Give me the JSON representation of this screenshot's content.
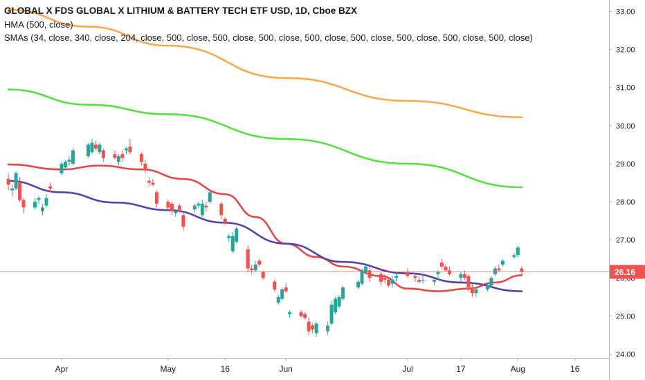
{
  "legend": {
    "title": "GLOBAL X FDS GLOBAL X LITHIUM & BATTERY TECH ETF USD, 1D, Cboe BZX",
    "hma": "HMA (500, close)",
    "smas": "SMAs (34, close, 340, close, 204, close, 500, close, 500, close, 500, close, 500, close, 500, close, 500, close, 500, close, 500, close)"
  },
  "colors": {
    "up": "#26a69a",
    "down": "#ef5350",
    "sma_red": "#e04848",
    "sma_blue": "#5b3ea8",
    "sma_green": "#55e040",
    "sma_orange": "#f9a84b",
    "price_line": "#ef5350",
    "axis": "#b2b5be"
  },
  "chart_data": {
    "type": "candlestick",
    "symbol": "GLOBAL X FDS GLOBAL X LITHIUM & BATTERY TECH ETF USD",
    "interval": "1D",
    "exchange": "Cboe BZX",
    "ylim": [
      23.9,
      33.3
    ],
    "y_ticks": [
      24.0,
      25.0,
      26.0,
      27.0,
      28.0,
      29.0,
      30.0,
      31.0,
      32.0,
      33.0
    ],
    "y_tick_labels": [
      "24.00",
      "25.00",
      "26.00",
      "27.00",
      "28.00",
      "29.00",
      "30.00",
      "31.00",
      "32.00",
      "33.00"
    ],
    "x_ticks": [
      {
        "label": "Apr",
        "date": "2023-04-03"
      },
      {
        "label": "May",
        "date": "2023-05-01"
      },
      {
        "label": "16",
        "date": "2023-05-16"
      },
      {
        "label": "Jun",
        "date": "2023-06-01"
      },
      {
        "label": "Jul",
        "date": "2023-07-03"
      },
      {
        "label": "17",
        "date": "2023-07-17"
      },
      {
        "label": "Aug",
        "date": "2023-08-01"
      },
      {
        "label": "16",
        "date": "2023-08-16"
      }
    ],
    "last_price": 26.16,
    "last_price_label": "26.16",
    "candles": [
      {
        "date": "2023-03-20",
        "o": 28.6,
        "h": 28.75,
        "l": 28.3,
        "c": 28.45
      },
      {
        "date": "2023-03-21",
        "o": 28.3,
        "h": 28.45,
        "l": 28.15,
        "c": 28.35
      },
      {
        "date": "2023-03-22",
        "o": 28.35,
        "h": 28.8,
        "l": 28.3,
        "c": 28.75
      },
      {
        "date": "2023-03-23",
        "o": 28.5,
        "h": 28.65,
        "l": 28.0,
        "c": 28.05
      },
      {
        "date": "2023-03-24",
        "o": 28.05,
        "h": 28.1,
        "l": 27.7,
        "c": 27.85
      },
      {
        "date": "2023-03-27",
        "o": 27.85,
        "h": 28.1,
        "l": 27.8,
        "c": 28.0
      },
      {
        "date": "2023-03-28",
        "o": 28.05,
        "h": 28.15,
        "l": 27.95,
        "c": 28.1
      },
      {
        "date": "2023-03-29",
        "o": 27.75,
        "h": 27.95,
        "l": 27.65,
        "c": 27.85
      },
      {
        "date": "2023-03-30",
        "o": 27.9,
        "h": 28.2,
        "l": 27.85,
        "c": 28.1
      },
      {
        "date": "2023-03-31",
        "o": 28.4,
        "h": 28.5,
        "l": 28.25,
        "c": 28.35
      },
      {
        "date": "2023-04-03",
        "o": 28.75,
        "h": 29.05,
        "l": 28.7,
        "c": 29.0
      },
      {
        "date": "2023-04-04",
        "o": 28.9,
        "h": 29.1,
        "l": 28.85,
        "c": 29.05
      },
      {
        "date": "2023-04-05",
        "o": 29.05,
        "h": 29.2,
        "l": 28.95,
        "c": 29.1
      },
      {
        "date": "2023-04-06",
        "o": 29.0,
        "h": 29.4,
        "l": 28.95,
        "c": 29.35
      },
      {
        "date": "2023-04-10",
        "o": 29.2,
        "h": 29.55,
        "l": 29.15,
        "c": 29.5
      },
      {
        "date": "2023-04-11",
        "o": 29.3,
        "h": 29.65,
        "l": 29.25,
        "c": 29.55
      },
      {
        "date": "2023-04-12",
        "o": 29.5,
        "h": 29.6,
        "l": 29.35,
        "c": 29.4
      },
      {
        "date": "2023-04-13",
        "o": 29.3,
        "h": 29.55,
        "l": 29.25,
        "c": 29.5
      },
      {
        "date": "2023-04-14",
        "o": 29.35,
        "h": 29.4,
        "l": 29.05,
        "c": 29.15
      },
      {
        "date": "2023-04-17",
        "o": 29.25,
        "h": 29.35,
        "l": 29.1,
        "c": 29.15
      },
      {
        "date": "2023-04-18",
        "o": 29.05,
        "h": 29.25,
        "l": 28.95,
        "c": 29.2
      },
      {
        "date": "2023-04-19",
        "o": 29.25,
        "h": 29.35,
        "l": 29.05,
        "c": 29.15
      },
      {
        "date": "2023-04-20",
        "o": 29.35,
        "h": 29.45,
        "l": 29.25,
        "c": 29.4
      },
      {
        "date": "2023-04-21",
        "o": 29.45,
        "h": 29.65,
        "l": 29.25,
        "c": 29.3
      },
      {
        "date": "2023-04-24",
        "o": 29.25,
        "h": 29.3,
        "l": 28.95,
        "c": 29.05
      },
      {
        "date": "2023-04-25",
        "o": 29.0,
        "h": 29.1,
        "l": 28.75,
        "c": 28.85
      },
      {
        "date": "2023-04-26",
        "o": 28.55,
        "h": 28.65,
        "l": 28.4,
        "c": 28.5
      },
      {
        "date": "2023-04-27",
        "o": 28.5,
        "h": 28.6,
        "l": 28.4,
        "c": 28.45
      },
      {
        "date": "2023-04-28",
        "o": 28.25,
        "h": 28.3,
        "l": 27.85,
        "c": 27.95
      },
      {
        "date": "2023-05-01",
        "o": 28.0,
        "h": 28.05,
        "l": 27.75,
        "c": 27.85
      },
      {
        "date": "2023-05-02",
        "o": 27.95,
        "h": 28.0,
        "l": 27.65,
        "c": 27.75
      },
      {
        "date": "2023-05-03",
        "o": 27.7,
        "h": 27.8,
        "l": 27.6,
        "c": 27.75
      },
      {
        "date": "2023-05-04",
        "o": 27.9,
        "h": 27.95,
        "l": 27.7,
        "c": 27.75
      },
      {
        "date": "2023-05-05",
        "o": 27.65,
        "h": 27.7,
        "l": 27.25,
        "c": 27.35
      },
      {
        "date": "2023-05-08",
        "o": 27.8,
        "h": 27.95,
        "l": 27.7,
        "c": 27.9
      },
      {
        "date": "2023-05-09",
        "o": 27.9,
        "h": 28.0,
        "l": 27.85,
        "c": 27.95
      },
      {
        "date": "2023-05-10",
        "o": 27.65,
        "h": 28.05,
        "l": 27.6,
        "c": 27.95
      },
      {
        "date": "2023-05-11",
        "o": 27.9,
        "h": 28.0,
        "l": 27.75,
        "c": 27.85
      },
      {
        "date": "2023-05-12",
        "o": 28.0,
        "h": 28.3,
        "l": 27.95,
        "c": 28.25
      },
      {
        "date": "2023-05-15",
        "o": 27.95,
        "h": 28.0,
        "l": 27.55,
        "c": 27.65
      },
      {
        "date": "2023-05-16",
        "o": 27.55,
        "h": 27.6,
        "l": 27.4,
        "c": 27.45
      },
      {
        "date": "2023-05-17",
        "o": 27.05,
        "h": 27.15,
        "l": 26.95,
        "c": 27.1
      },
      {
        "date": "2023-05-18",
        "o": 26.7,
        "h": 27.2,
        "l": 26.65,
        "c": 27.1
      },
      {
        "date": "2023-05-19",
        "o": 26.95,
        "h": 27.35,
        "l": 26.9,
        "c": 27.3
      },
      {
        "date": "2023-05-22",
        "o": 26.75,
        "h": 26.85,
        "l": 26.15,
        "c": 26.25
      },
      {
        "date": "2023-05-23",
        "o": 26.25,
        "h": 26.35,
        "l": 26.1,
        "c": 26.2
      },
      {
        "date": "2023-05-24",
        "o": 26.2,
        "h": 26.45,
        "l": 26.15,
        "c": 26.35
      },
      {
        "date": "2023-05-25",
        "o": 26.45,
        "h": 26.5,
        "l": 26.3,
        "c": 26.35
      },
      {
        "date": "2023-05-26",
        "o": 26.15,
        "h": 26.2,
        "l": 25.95,
        "c": 26.0
      },
      {
        "date": "2023-05-29",
        "o": 25.9,
        "h": 25.95,
        "l": 25.65,
        "c": 25.7
      },
      {
        "date": "2023-05-30",
        "o": 25.35,
        "h": 25.55,
        "l": 25.3,
        "c": 25.5
      },
      {
        "date": "2023-05-31",
        "o": 25.45,
        "h": 25.75,
        "l": 25.4,
        "c": 25.7
      },
      {
        "date": "2023-06-01",
        "o": 25.75,
        "h": 25.85,
        "l": 25.6,
        "c": 25.65
      },
      {
        "date": "2023-06-02",
        "o": 25.05,
        "h": 25.15,
        "l": 24.95,
        "c": 25.1
      },
      {
        "date": "2023-06-05",
        "o": 25.1,
        "h": 25.15,
        "l": 24.95,
        "c": 25.0
      },
      {
        "date": "2023-06-06",
        "o": 25.05,
        "h": 25.1,
        "l": 24.9,
        "c": 24.95
      },
      {
        "date": "2023-06-07",
        "o": 24.85,
        "h": 24.95,
        "l": 24.5,
        "c": 24.6
      },
      {
        "date": "2023-06-08",
        "o": 24.75,
        "h": 24.8,
        "l": 24.55,
        "c": 24.65
      },
      {
        "date": "2023-06-09",
        "o": 24.55,
        "h": 24.85,
        "l": 24.45,
        "c": 24.8
      },
      {
        "date": "2023-06-12",
        "o": 24.6,
        "h": 24.85,
        "l": 24.5,
        "c": 24.75
      },
      {
        "date": "2023-06-13",
        "o": 24.8,
        "h": 25.4,
        "l": 24.75,
        "c": 25.3
      },
      {
        "date": "2023-06-14",
        "o": 25.1,
        "h": 25.5,
        "l": 25.05,
        "c": 25.45
      },
      {
        "date": "2023-06-15",
        "o": 25.25,
        "h": 25.55,
        "l": 25.2,
        "c": 25.5
      },
      {
        "date": "2023-06-16",
        "o": 25.45,
        "h": 25.8,
        "l": 25.4,
        "c": 25.75
      },
      {
        "date": "2023-06-20",
        "o": 25.75,
        "h": 25.95,
        "l": 25.7,
        "c": 25.9
      },
      {
        "date": "2023-06-21",
        "o": 25.85,
        "h": 26.25,
        "l": 25.8,
        "c": 26.2
      },
      {
        "date": "2023-06-22",
        "o": 26.15,
        "h": 26.35,
        "l": 26.1,
        "c": 26.3
      },
      {
        "date": "2023-06-23",
        "o": 26.2,
        "h": 26.3,
        "l": 25.9,
        "c": 26.0
      },
      {
        "date": "2023-06-26",
        "o": 26.1,
        "h": 26.15,
        "l": 25.8,
        "c": 25.9
      },
      {
        "date": "2023-06-27",
        "o": 26.0,
        "h": 26.1,
        "l": 25.85,
        "c": 25.95
      },
      {
        "date": "2023-06-28",
        "o": 25.95,
        "h": 26.0,
        "l": 25.75,
        "c": 25.8
      },
      {
        "date": "2023-06-29",
        "o": 25.85,
        "h": 26.05,
        "l": 25.75,
        "c": 25.95
      },
      {
        "date": "2023-06-30",
        "o": 26.0,
        "h": 26.15,
        "l": 25.9,
        "c": 26.05
      },
      {
        "date": "2023-07-03",
        "o": 26.15,
        "h": 26.25,
        "l": 26.0,
        "c": 26.05
      },
      {
        "date": "2023-07-05",
        "o": 26.05,
        "h": 26.1,
        "l": 25.9,
        "c": 26.0
      },
      {
        "date": "2023-07-06",
        "o": 25.95,
        "h": 26.05,
        "l": 25.85,
        "c": 25.9
      },
      {
        "date": "2023-07-07",
        "o": 25.95,
        "h": 26.1,
        "l": 25.85,
        "c": 25.95
      },
      {
        "date": "2023-07-10",
        "o": 25.9,
        "h": 26.0,
        "l": 25.8,
        "c": 25.95
      },
      {
        "date": "2023-07-11",
        "o": 26.1,
        "h": 26.2,
        "l": 25.95,
        "c": 26.15
      },
      {
        "date": "2023-07-12",
        "o": 26.4,
        "h": 26.5,
        "l": 26.25,
        "c": 26.3
      },
      {
        "date": "2023-07-13",
        "o": 26.3,
        "h": 26.35,
        "l": 26.15,
        "c": 26.2
      },
      {
        "date": "2023-07-14",
        "o": 26.2,
        "h": 26.3,
        "l": 26.05,
        "c": 26.1
      },
      {
        "date": "2023-07-17",
        "o": 26.0,
        "h": 26.15,
        "l": 25.9,
        "c": 26.1
      },
      {
        "date": "2023-07-18",
        "o": 26.1,
        "h": 26.2,
        "l": 25.95,
        "c": 26.0
      },
      {
        "date": "2023-07-19",
        "o": 26.05,
        "h": 26.1,
        "l": 25.65,
        "c": 25.75
      },
      {
        "date": "2023-07-20",
        "o": 25.75,
        "h": 25.85,
        "l": 25.5,
        "c": 25.6
      },
      {
        "date": "2023-07-21",
        "o": 25.6,
        "h": 25.75,
        "l": 25.5,
        "c": 25.7
      },
      {
        "date": "2023-07-24",
        "o": 25.7,
        "h": 25.85,
        "l": 25.65,
        "c": 25.8
      },
      {
        "date": "2023-07-25",
        "o": 25.8,
        "h": 26.05,
        "l": 25.75,
        "c": 26.0
      },
      {
        "date": "2023-07-26",
        "o": 26.1,
        "h": 26.3,
        "l": 26.05,
        "c": 26.25
      },
      {
        "date": "2023-07-27",
        "o": 26.25,
        "h": 26.35,
        "l": 26.15,
        "c": 26.2
      },
      {
        "date": "2023-07-28",
        "o": 26.35,
        "h": 26.5,
        "l": 26.3,
        "c": 26.45
      },
      {
        "date": "2023-07-31",
        "o": 26.55,
        "h": 26.65,
        "l": 26.5,
        "c": 26.6
      },
      {
        "date": "2023-08-01",
        "o": 26.6,
        "h": 26.85,
        "l": 26.55,
        "c": 26.8
      },
      {
        "date": "2023-08-02",
        "o": 26.25,
        "h": 26.3,
        "l": 26.1,
        "c": 26.16
      }
    ],
    "sma_lines": [
      {
        "color": "#f9a84b",
        "points": [
          [
            "2023-03-20",
            33.05
          ],
          [
            "2023-04-10",
            32.6
          ],
          [
            "2023-05-01",
            32.1
          ],
          [
            "2023-06-01",
            31.25
          ],
          [
            "2023-07-03",
            30.65
          ],
          [
            "2023-08-02",
            30.22
          ]
        ]
      },
      {
        "color": "#55e040",
        "points": [
          [
            "2023-03-20",
            30.95
          ],
          [
            "2023-04-10",
            30.55
          ],
          [
            "2023-05-01",
            30.3
          ],
          [
            "2023-06-01",
            29.65
          ],
          [
            "2023-07-03",
            29.0
          ],
          [
            "2023-08-02",
            28.38
          ]
        ]
      },
      {
        "color": "#e04848",
        "points": [
          [
            "2023-03-20",
            28.98
          ],
          [
            "2023-04-03",
            28.85
          ],
          [
            "2023-04-13",
            28.95
          ],
          [
            "2023-04-24",
            28.85
          ],
          [
            "2023-05-05",
            28.6
          ],
          [
            "2023-05-16",
            28.2
          ],
          [
            "2023-05-24",
            27.6
          ],
          [
            "2023-06-01",
            26.9
          ],
          [
            "2023-06-09",
            26.55
          ],
          [
            "2023-06-16",
            26.3
          ],
          [
            "2023-06-26",
            26.05
          ],
          [
            "2023-07-03",
            25.72
          ],
          [
            "2023-07-11",
            25.65
          ],
          [
            "2023-07-19",
            25.72
          ],
          [
            "2023-07-26",
            25.88
          ],
          [
            "2023-08-02",
            26.07
          ]
        ]
      },
      {
        "color": "#5b3ea8",
        "points": [
          [
            "2023-03-20",
            28.55
          ],
          [
            "2023-04-03",
            28.25
          ],
          [
            "2023-04-17",
            27.98
          ],
          [
            "2023-05-01",
            27.78
          ],
          [
            "2023-05-16",
            27.45
          ],
          [
            "2023-06-01",
            26.9
          ],
          [
            "2023-06-16",
            26.42
          ],
          [
            "2023-07-03",
            26.12
          ],
          [
            "2023-07-17",
            25.88
          ],
          [
            "2023-08-02",
            25.65
          ]
        ]
      }
    ]
  }
}
